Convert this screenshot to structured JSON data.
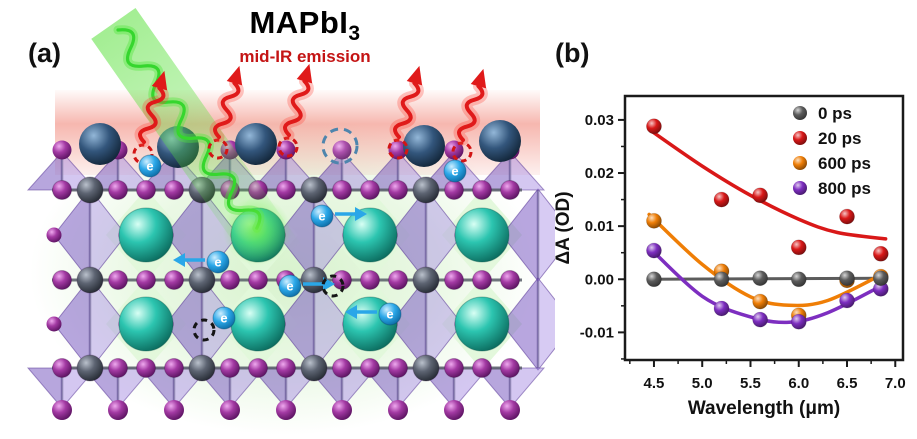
{
  "figure": {
    "title_main": "MAPbI",
    "title_sub": "3",
    "subtitle": "mid-IR emission",
    "subtitle_color": "#c41414"
  },
  "panel_a": {
    "label": "(a)",
    "electron_label": "e",
    "colors": {
      "octahedra": "#8a6ad0",
      "iodide_sphere": "#a33aa3",
      "lead_sphere": "#5d6472",
      "cation_sphere": "#1fae9c",
      "surface_sphere": "#33567c",
      "electron": "#2aa7e8",
      "excitation_beam": "#3fd43f",
      "emission_arrow": "#e01a1a"
    }
  },
  "panel_b": {
    "label": "(b)"
  },
  "chart_data": {
    "type": "scatter",
    "title": "",
    "xlabel": "Wavelength (μm)",
    "ylabel": "ΔA (OD)",
    "xlim": [
      4.2,
      7.08
    ],
    "ylim": [
      -0.0152,
      0.0345
    ],
    "xticks": [
      "4.5",
      "5.0",
      "5.5",
      "6.0",
      "6.5",
      "7.0"
    ],
    "yticks": [
      "-0.01",
      "0.00",
      "0.01",
      "0.02",
      "0.03"
    ],
    "grid": false,
    "legend_position": "top-right",
    "x": [
      4.5,
      5.2,
      5.6,
      6.0,
      6.5,
      6.85
    ],
    "series": [
      {
        "name": "0 ps",
        "color": "#5c5c5c",
        "values": [
          0.0,
          0.0,
          0.0002,
          0.0,
          0.0002,
          0.0002
        ],
        "fit": [
          [
            4.45,
            0.0
          ],
          [
            6.9,
            0.0002
          ]
        ]
      },
      {
        "name": "20 ps",
        "color": "#d91818",
        "values": [
          0.0288,
          0.015,
          0.0158,
          0.006,
          0.0118,
          0.0048
        ],
        "fit": [
          [
            4.45,
            0.0282
          ],
          [
            5.0,
            0.0213
          ],
          [
            5.5,
            0.0158
          ],
          [
            6.0,
            0.0113
          ],
          [
            6.4,
            0.0088
          ],
          [
            6.9,
            0.0076
          ]
        ]
      },
      {
        "name": "600 ps",
        "color": "#ef7e06",
        "values": [
          0.011,
          0.0015,
          -0.0042,
          -0.0068,
          -0.0002,
          0.0005
        ],
        "fit": [
          [
            4.45,
            0.0122
          ],
          [
            5.0,
            0.0028
          ],
          [
            5.5,
            -0.0033
          ],
          [
            5.9,
            -0.0049
          ],
          [
            6.3,
            -0.004
          ],
          [
            6.85,
            0.0008
          ]
        ]
      },
      {
        "name": "800 ps",
        "color": "#7d2ec0",
        "values": [
          0.0054,
          -0.0055,
          -0.0076,
          -0.008,
          -0.004,
          -0.0018
        ],
        "fit": [
          [
            4.45,
            0.006
          ],
          [
            5.0,
            -0.0032
          ],
          [
            5.5,
            -0.0071
          ],
          [
            5.9,
            -0.0081
          ],
          [
            6.3,
            -0.0063
          ],
          [
            6.85,
            -0.0013
          ]
        ]
      }
    ]
  }
}
